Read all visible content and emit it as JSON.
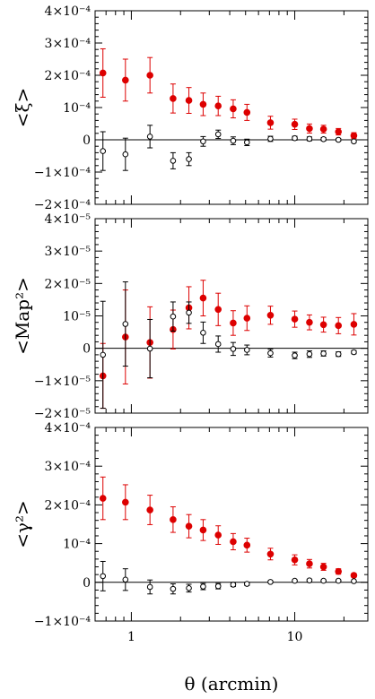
{
  "chart_data": [
    {
      "type": "scatter",
      "ylabel": "<ξ>",
      "ylim": [
        -0.0002,
        0.0004
      ],
      "yticks": [
        "−2×10⁻⁴",
        "−1×10⁻⁴",
        "0",
        "10⁻⁴",
        "2×10⁻⁴",
        "3×10⁻⁴",
        "4×10⁻⁴"
      ],
      "series": [
        {
          "color": "#dd0000",
          "marker": "filled-circle",
          "x": [
            0.67,
            0.92,
            1.3,
            1.8,
            2.25,
            2.75,
            3.4,
            4.2,
            5.1,
            7.1,
            10.0,
            12.3,
            15.0,
            18.5,
            23.0
          ],
          "y": [
            0.000207,
            0.000185,
            0.0002,
            0.000128,
            0.000122,
            0.00011,
            0.000105,
            9.6e-05,
            8.5e-05,
            5.3e-05,
            4.8e-05,
            3.5e-05,
            3.3e-05,
            2.5e-05,
            1.3e-05
          ],
          "err": [
            7.5e-05,
            6.5e-05,
            5.5e-05,
            4.5e-05,
            4e-05,
            3.5e-05,
            3e-05,
            2.8e-05,
            2.5e-05,
            2e-05,
            1.6e-05,
            1.4e-05,
            1.2e-05,
            1e-05,
            9e-06
          ]
        },
        {
          "color": "#000000",
          "marker": "open-circle",
          "x": [
            0.67,
            0.92,
            1.3,
            1.8,
            2.25,
            2.75,
            3.4,
            4.2,
            5.1,
            7.1,
            10.0,
            12.3,
            15.0,
            18.5,
            23.0
          ],
          "y": [
            -3.5e-05,
            -4.5e-05,
            1e-05,
            -6.5e-05,
            -6e-05,
            -5e-06,
            1.7e-05,
            -3e-06,
            -8e-06,
            3e-06,
            5e-06,
            3e-06,
            2e-06,
            0.0,
            -5e-06
          ],
          "err": [
            6e-05,
            5e-05,
            3.5e-05,
            2.5e-05,
            2e-05,
            1.5e-05,
            1.3e-05,
            1.2e-05,
            1e-05,
            8e-06,
            6e-06,
            6e-06,
            5e-06,
            4e-06,
            4e-06
          ]
        }
      ]
    },
    {
      "type": "scatter",
      "ylabel": "<Map²>",
      "ylim": [
        -2e-05,
        4e-05
      ],
      "yticks": [
        "−2×10⁻⁵",
        "−1×10⁻⁵",
        "0",
        "10⁻⁵",
        "2×10⁻⁵",
        "3×10⁻⁵",
        "4×10⁻⁵"
      ],
      "series": [
        {
          "color": "#dd0000",
          "marker": "filled-circle",
          "x": [
            0.67,
            0.92,
            1.3,
            1.8,
            2.25,
            2.75,
            3.4,
            4.2,
            5.1,
            7.1,
            10.0,
            12.3,
            15.0,
            18.5,
            23.0
          ],
          "y": [
            -8.5e-06,
            3.5e-06,
            1.8e-06,
            5.8e-06,
            1.25e-05,
            1.55e-05,
            1.2e-05,
            7.8e-06,
            9.3e-06,
            1.02e-05,
            9e-06,
            8e-06,
            7.3e-06,
            7e-06,
            7.4e-06
          ],
          "err": [
            1e-05,
            1.45e-05,
            1.1e-05,
            6e-06,
            6.5e-06,
            5.5e-06,
            5e-06,
            3.8e-06,
            3.8e-06,
            2.8e-06,
            2.5e-06,
            2.3e-06,
            2.3e-06,
            2.5e-06,
            3.3e-06
          ]
        },
        {
          "color": "#000000",
          "marker": "open-circle",
          "x": [
            0.67,
            0.92,
            1.3,
            1.8,
            2.25,
            2.75,
            3.4,
            4.2,
            5.1,
            7.1,
            10.0,
            12.3,
            15.0,
            18.5,
            23.0
          ],
          "y": [
            -2e-06,
            7.5e-06,
            -1e-07,
            9.8e-06,
            1.1e-05,
            4.8e-06,
            1.3e-06,
            -2e-07,
            -5e-07,
            -1.5e-06,
            -2.2e-06,
            -1.8e-06,
            -1.6e-06,
            -1.8e-06,
            -1.2e-06
          ],
          "err": [
            1.65e-05,
            1.3e-05,
            9e-06,
            4.5e-06,
            3.3e-06,
            3.3e-06,
            2.5e-06,
            2e-06,
            1.5e-06,
            1.2e-06,
            1e-06,
            1e-06,
            8e-07,
            7e-07,
            5e-07
          ]
        }
      ]
    },
    {
      "type": "scatter",
      "ylabel": "<γ²>",
      "xlabel": "θ (arcmin)",
      "xscale": "log",
      "xlim": [
        0.6,
        28
      ],
      "xticks": [
        "1",
        "10"
      ],
      "ylim": [
        -0.0001,
        0.0004
      ],
      "yticks": [
        "−1×10⁻⁴",
        "0",
        "10⁻⁴",
        "2×10⁻⁴",
        "3×10⁻⁴",
        "4×10⁻⁴"
      ],
      "series": [
        {
          "color": "#dd0000",
          "marker": "filled-circle",
          "x": [
            0.67,
            0.92,
            1.3,
            1.8,
            2.25,
            2.75,
            3.4,
            4.2,
            5.1,
            7.1,
            10.0,
            12.3,
            15.0,
            18.5,
            23.0
          ],
          "y": [
            0.000217,
            0.000207,
            0.000187,
            0.000162,
            0.000145,
            0.000135,
            0.000122,
            0.000105,
            9.6e-05,
            7.3e-05,
            5.8e-05,
            4.8e-05,
            4e-05,
            2.8e-05,
            1.8e-05
          ],
          "err": [
            5.5e-05,
            4.5e-05,
            3.8e-05,
            3.3e-05,
            3e-05,
            2.7e-05,
            2.4e-05,
            2.1e-05,
            1.8e-05,
            1.5e-05,
            1.3e-05,
            1.1e-05,
            9e-06,
            7e-06,
            5e-06
          ]
        },
        {
          "color": "#000000",
          "marker": "open-circle",
          "x": [
            0.67,
            0.92,
            1.3,
            1.8,
            2.25,
            2.75,
            3.4,
            4.2,
            5.1,
            7.1,
            10.0,
            12.3,
            15.0,
            18.5,
            23.0
          ],
          "y": [
            1.6e-05,
            7e-06,
            -1.2e-05,
            -1.7e-05,
            -1.5e-05,
            -1.1e-05,
            -1e-05,
            -6e-06,
            -4e-06,
            1e-06,
            4e-06,
            5e-06,
            4e-06,
            4e-06,
            3e-06
          ],
          "err": [
            3.8e-05,
            2.8e-05,
            1.8e-05,
            1.3e-05,
            1e-05,
            8e-06,
            7e-06,
            5e-06,
            4e-06,
            3e-06,
            2.5e-06,
            2.2e-06,
            2e-06,
            1.8e-06,
            1.5e-06
          ]
        }
      ]
    }
  ]
}
